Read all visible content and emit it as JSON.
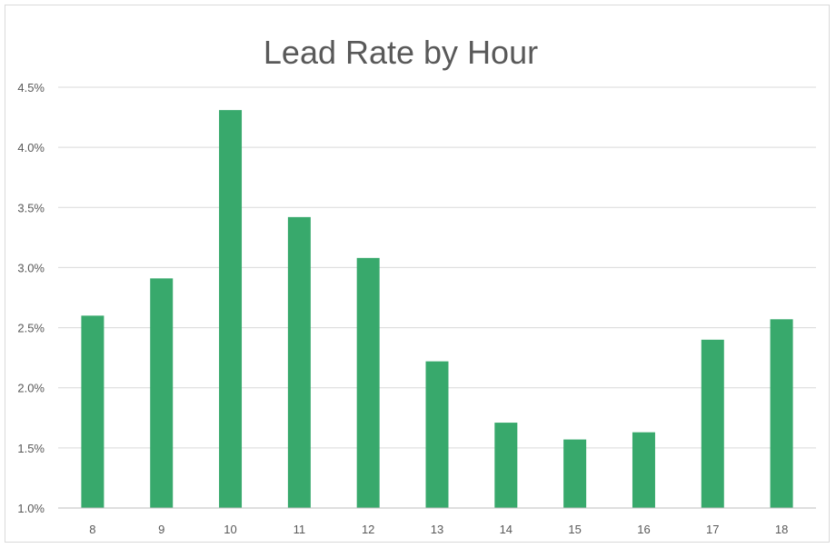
{
  "chart_data": {
    "type": "bar",
    "title": "Lead Rate by Hour",
    "xlabel": "",
    "ylabel": "",
    "categories": [
      "8",
      "9",
      "10",
      "11",
      "12",
      "13",
      "14",
      "15",
      "16",
      "17",
      "18"
    ],
    "values": [
      2.6,
      2.91,
      4.31,
      3.42,
      3.08,
      2.22,
      1.71,
      1.57,
      1.63,
      2.4,
      2.57
    ],
    "value_unit": "%",
    "ylim": [
      1.0,
      4.5
    ],
    "yticks": [
      "1.0%",
      "1.5%",
      "2.0%",
      "2.5%",
      "3.0%",
      "3.5%",
      "4.0%",
      "4.5%"
    ],
    "ytick_values": [
      1.0,
      1.5,
      2.0,
      2.5,
      3.0,
      3.5,
      4.0,
      4.5
    ],
    "grid": true,
    "legend": "none",
    "bar_color": "#38a96c"
  }
}
